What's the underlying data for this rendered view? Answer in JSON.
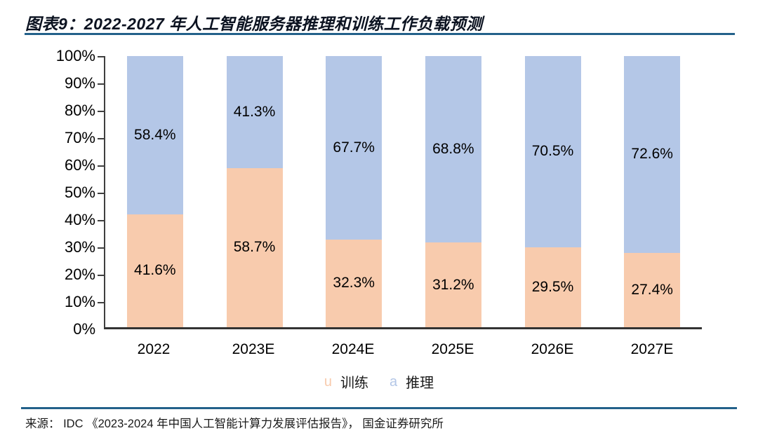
{
  "header": {
    "title": "图表9：2022-2027 年人工智能服务器推理和训练工作负载预测"
  },
  "colors": {
    "training_bar": "#F8CBAD",
    "inference_bar": "#B4C7E7",
    "rule": "#23618A",
    "axis": "#3F3F3F",
    "label_text": "#000000"
  },
  "chart_data": {
    "type": "bar",
    "subtype": "stacked-100-percent",
    "title": "2022-2027 年人工智能服务器推理和训练工作负载预测",
    "categories": [
      "2022",
      "2023E",
      "2024E",
      "2025E",
      "2026E",
      "2027E"
    ],
    "series": [
      {
        "name": "训练",
        "legend_marker": "u",
        "color": "#F8CBAD",
        "position": "bottom",
        "values": [
          41.6,
          58.7,
          32.3,
          31.2,
          29.5,
          27.4
        ],
        "labels": [
          "41.6%",
          "58.7%",
          "32.3%",
          "31.2%",
          "29.5%",
          "27.4%"
        ]
      },
      {
        "name": "推理",
        "legend_marker": "a",
        "color": "#B4C7E7",
        "position": "top",
        "values": [
          58.4,
          41.3,
          67.7,
          68.8,
          70.5,
          72.6
        ],
        "labels": [
          "58.4%",
          "41.3%",
          "67.7%",
          "68.8%",
          "70.5%",
          "72.6%"
        ]
      }
    ],
    "xlabel": "",
    "ylabel": "",
    "ylim": [
      0,
      100
    ],
    "y_ticks": [
      "100%",
      "90%",
      "80%",
      "70%",
      "60%",
      "50%",
      "40%",
      "30%",
      "20%",
      "10%",
      "0%"
    ],
    "grid": false,
    "legend_position": "bottom-center",
    "data_labels": "inside-center"
  },
  "footer": {
    "source": "来源： IDC 《2023-2024 年中国人工智能计算力发展评估报告》， 国金证券研究所"
  }
}
